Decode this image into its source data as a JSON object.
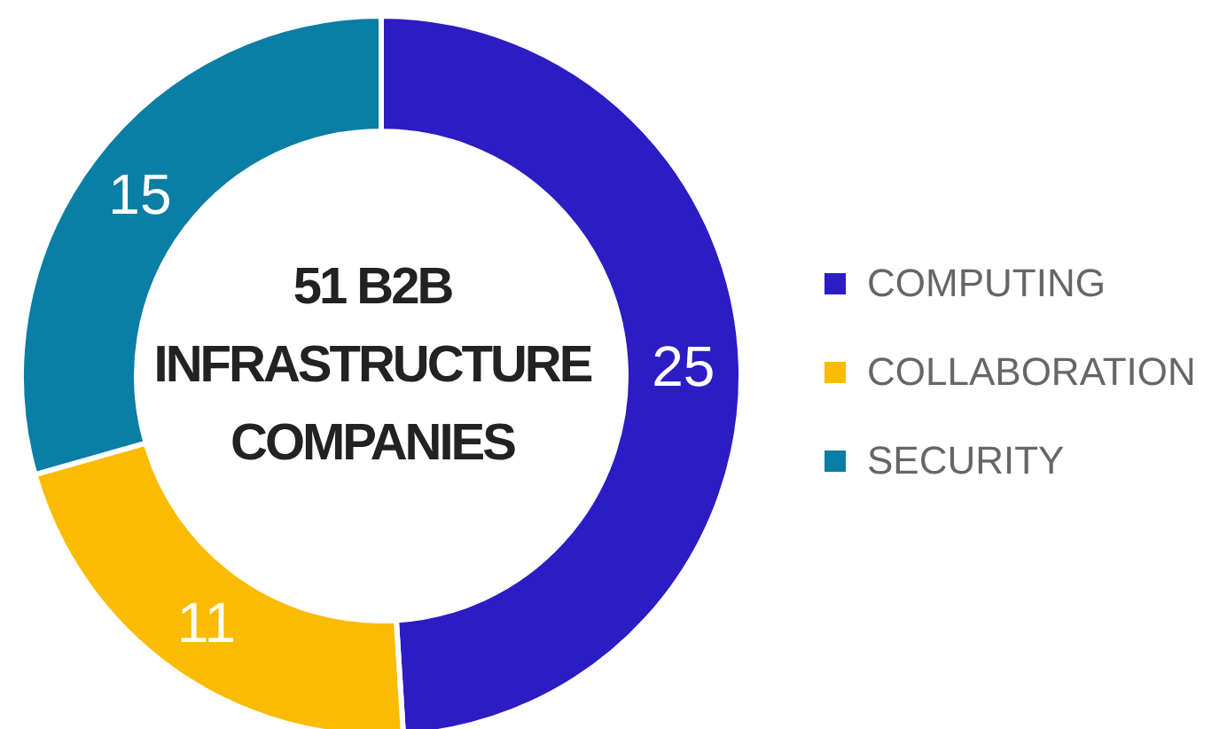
{
  "chart_data": {
    "type": "donut",
    "title": "51 B2B INFRASTRUCTURE COMPANIES",
    "categories": [
      "COMPUTING",
      "COLLABORATION",
      "SECURITY"
    ],
    "values": [
      25,
      11,
      15
    ],
    "colors": [
      "#2b1cc4",
      "#fbbb00",
      "#0a7ea4"
    ],
    "data_labels": true,
    "legend": "right"
  }
}
